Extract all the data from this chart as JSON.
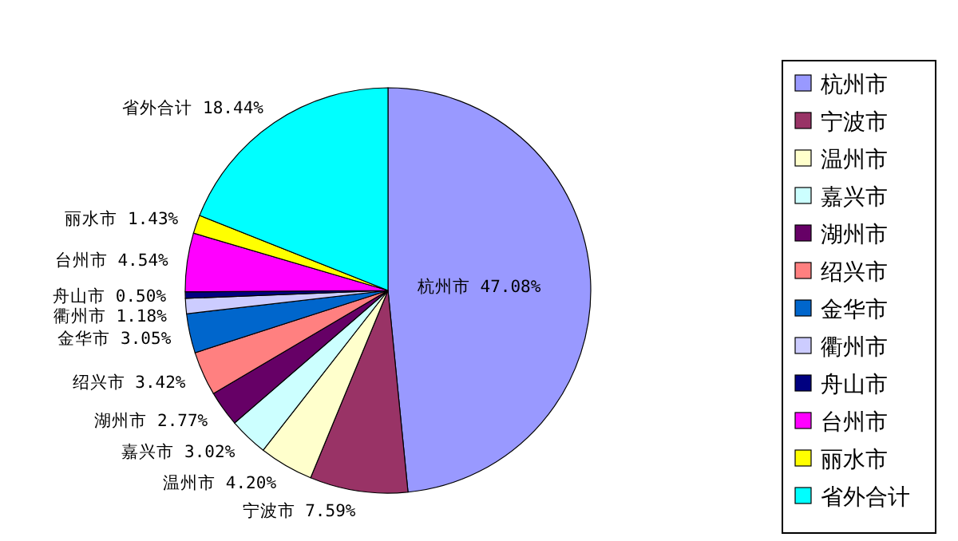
{
  "chart_data": {
    "type": "pie",
    "categories": [
      "杭州市",
      "宁波市",
      "温州市",
      "嘉兴市",
      "湖州市",
      "绍兴市",
      "金华市",
      "衢州市",
      "舟山市",
      "台州市",
      "丽水市",
      "省外合计"
    ],
    "values": [
      47.08,
      7.59,
      4.2,
      3.02,
      2.77,
      3.42,
      3.05,
      1.18,
      0.5,
      4.54,
      1.43,
      18.44
    ],
    "value_labels": [
      "47.08%",
      "7.59%",
      "4.20%",
      "3.02%",
      "2.77%",
      "3.42%",
      "3.05%",
      "1.18%",
      "0.50%",
      "4.54%",
      "1.43%",
      "18.44%"
    ],
    "colors": [
      "#9999ff",
      "#993366",
      "#ffffcc",
      "#ccffff",
      "#660066",
      "#ff8080",
      "#0066cc",
      "#ccccff",
      "#000080",
      "#ff00ff",
      "#ffff00",
      "#00ffff"
    ],
    "legend": "right"
  }
}
